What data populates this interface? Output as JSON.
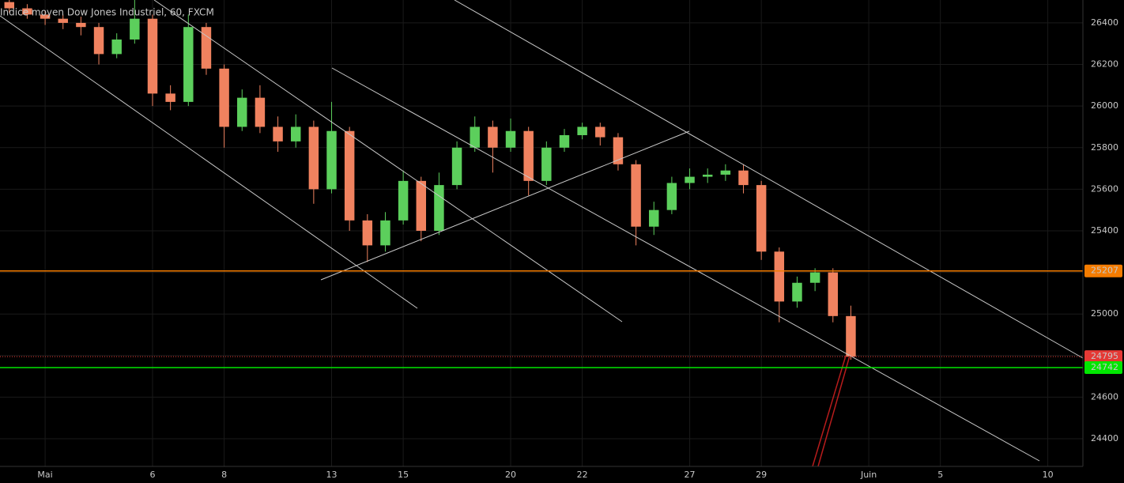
{
  "chart_data": {
    "type": "candlestick",
    "title": "Indice moyen Dow Jones Industriel, 60, FXCM",
    "x": [
      -1,
      -0.5,
      0,
      0.5,
      1,
      1.5,
      2,
      2.5,
      3,
      3.5,
      4,
      4.5,
      5,
      5.5,
      6,
      6.5,
      7,
      7.5,
      8,
      8.5,
      9,
      9.5,
      10,
      10.5,
      11,
      11.5,
      12,
      12.5,
      13,
      13.5,
      14,
      14.5,
      15,
      15.5,
      16,
      16.5,
      17,
      17.5,
      18,
      18.5,
      19,
      19.5,
      20,
      20.5,
      21,
      21.5,
      22,
      22.5
    ],
    "open": [
      26500,
      26470,
      26440,
      26420,
      26400,
      26380,
      26250,
      26320,
      26420,
      26060,
      26020,
      26380,
      26180,
      25900,
      26040,
      25900,
      25830,
      25900,
      25600,
      25880,
      25450,
      25330,
      25450,
      25640,
      25400,
      25620,
      25800,
      25900,
      25800,
      25880,
      25640,
      25800,
      25860,
      25900,
      25850,
      25720,
      25420,
      25500,
      25630,
      25660,
      25670,
      25690,
      25620,
      25300,
      25060,
      25150,
      25200,
      24990
    ],
    "high": [
      26520,
      26490,
      26460,
      26440,
      26430,
      26400,
      26350,
      26510,
      26440,
      26100,
      26440,
      26400,
      26200,
      26080,
      26100,
      25950,
      25960,
      25930,
      26020,
      25900,
      25480,
      25490,
      25690,
      25660,
      25680,
      25830,
      25950,
      25930,
      25940,
      25900,
      25830,
      25890,
      25920,
      25920,
      25870,
      25740,
      25540,
      25660,
      25700,
      25700,
      25720,
      25720,
      25640,
      25320,
      25180,
      25220,
      25220,
      25040
    ],
    "low": [
      26450,
      26420,
      26390,
      26370,
      26340,
      26200,
      26230,
      26300,
      26000,
      25980,
      26000,
      26150,
      25800,
      25880,
      25870,
      25780,
      25800,
      25530,
      25580,
      25400,
      25250,
      25300,
      25430,
      25350,
      25380,
      25600,
      25780,
      25680,
      25780,
      25570,
      25620,
      25780,
      25840,
      25810,
      25690,
      25330,
      25380,
      25480,
      25600,
      25630,
      25640,
      25580,
      25260,
      24960,
      25030,
      25110,
      24960,
      24780
    ],
    "close": [
      26470,
      26440,
      26420,
      26400,
      26380,
      26250,
      26320,
      26420,
      26060,
      26020,
      26380,
      26180,
      25900,
      26040,
      25900,
      25830,
      25900,
      25600,
      25880,
      25450,
      25330,
      25450,
      25640,
      25400,
      25620,
      25800,
      25900,
      25800,
      25880,
      25640,
      25800,
      25860,
      25900,
      25850,
      25720,
      25420,
      25500,
      25630,
      25660,
      25670,
      25690,
      25620,
      25300,
      25060,
      25150,
      25200,
      24990,
      24795
    ],
    "up_color": "#5ccf5c",
    "down_color": "#f0825f",
    "xlim": [
      -1.26,
      28.98
    ],
    "xticks": [
      {
        "value": 0,
        "label": "Mai"
      },
      {
        "value": 3,
        "label": "6"
      },
      {
        "value": 5,
        "label": "8"
      },
      {
        "value": 8,
        "label": "13"
      },
      {
        "value": 10,
        "label": "15"
      },
      {
        "value": 13,
        "label": "20"
      },
      {
        "value": 15,
        "label": "22"
      },
      {
        "value": 18,
        "label": "27"
      },
      {
        "value": 20,
        "label": "29"
      },
      {
        "value": 23,
        "label": "Juin"
      },
      {
        "value": 25,
        "label": "5"
      },
      {
        "value": 28,
        "label": "10"
      }
    ],
    "ylim": [
      24267,
      26510
    ],
    "yticks": [
      24400,
      24600,
      24800,
      25000,
      25200,
      25400,
      25600,
      25800,
      26000,
      26200,
      26400
    ],
    "grid": true,
    "levels": [
      {
        "value": 25207,
        "color": "#f57c00",
        "style": "solid",
        "label_color": "#f57c00",
        "text_color": "#ffffff"
      },
      {
        "value": 24795,
        "color": "#e53935",
        "style": "dotted",
        "label_color": "#e53935",
        "text_color": "#ffffff"
      },
      {
        "value": 24742,
        "color": "#00e600",
        "style": "solid",
        "label_color": "#00e600",
        "text_color": "#000000"
      }
    ]
  }
}
